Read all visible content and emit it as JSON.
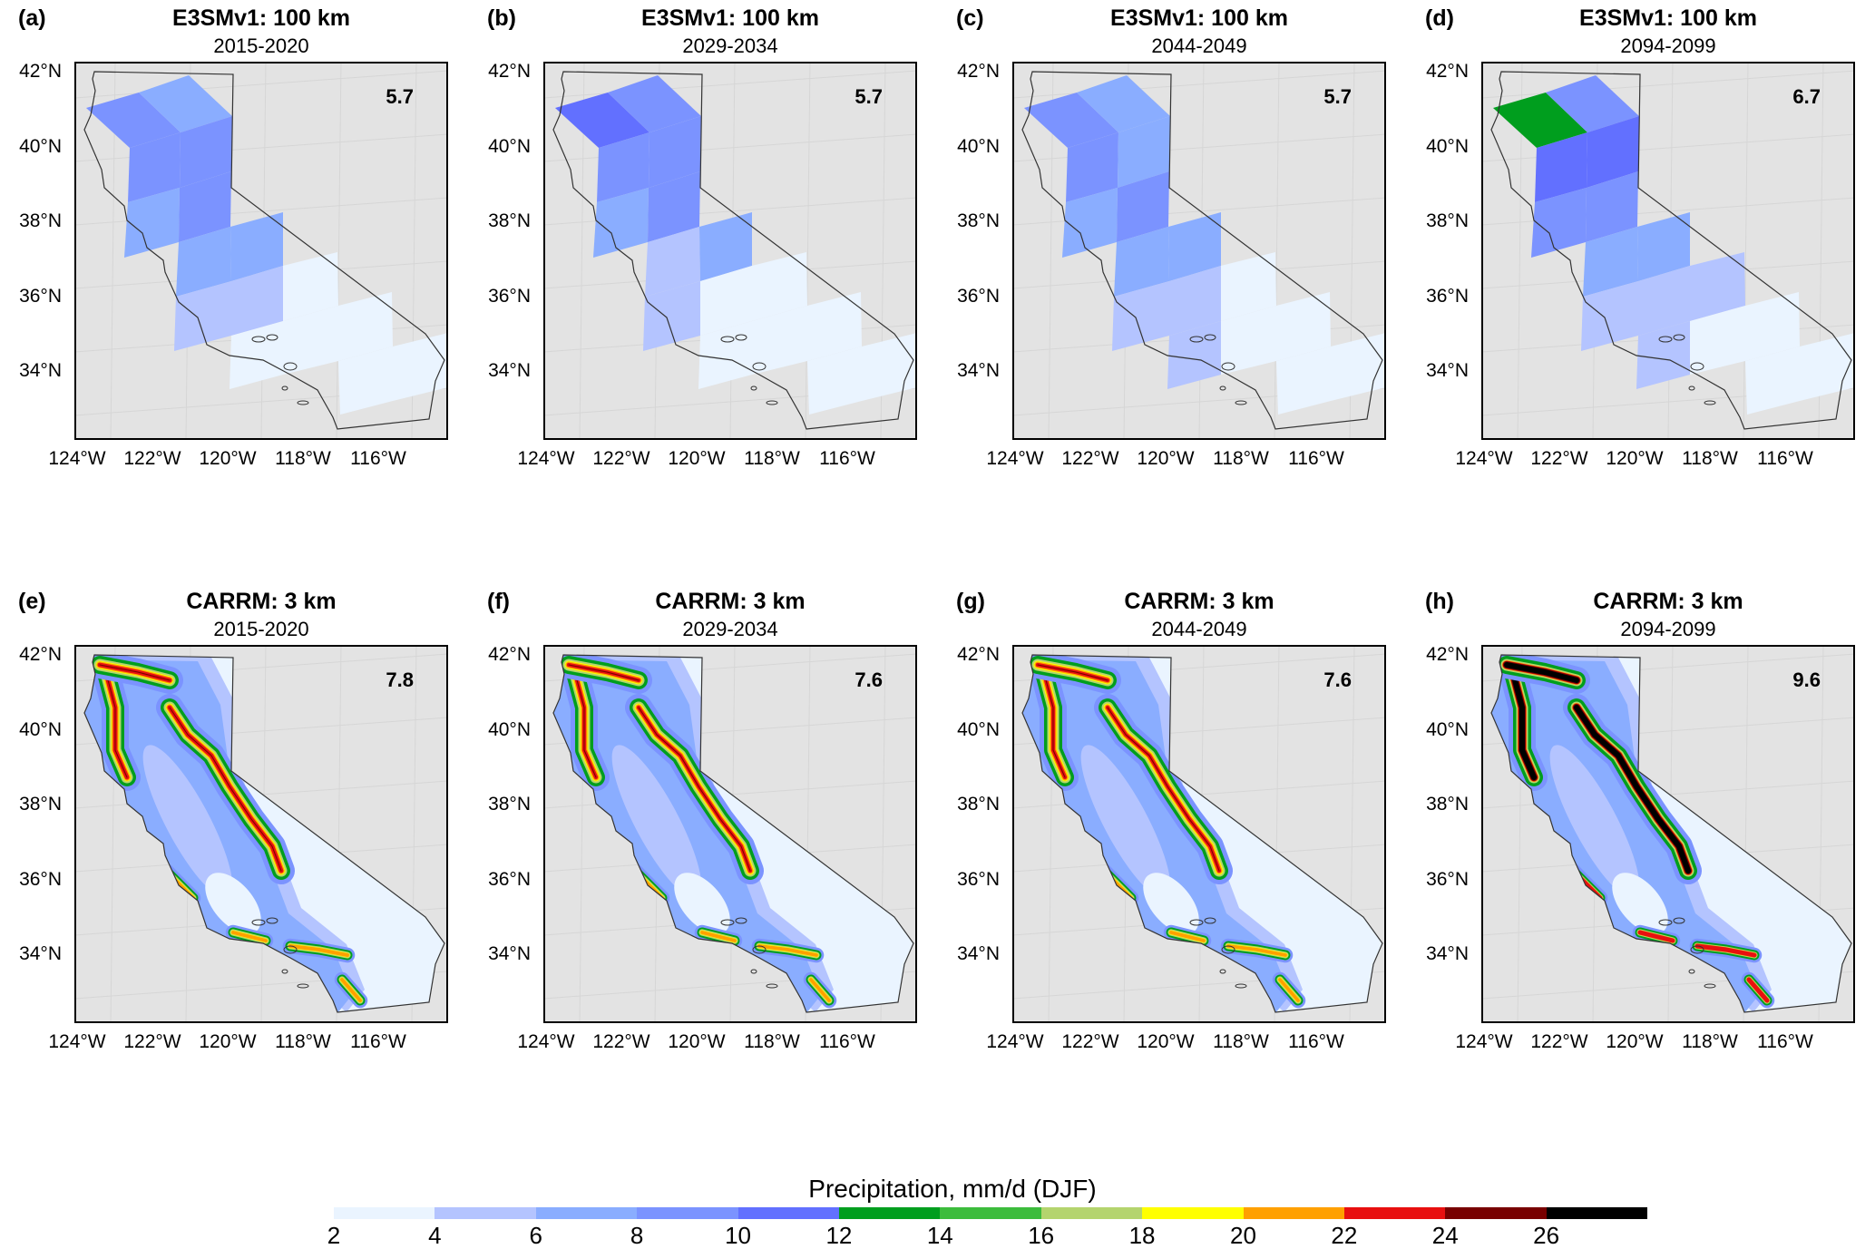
{
  "lat_ticks": [
    "42°N",
    "40°N",
    "38°N",
    "36°N",
    "34°N"
  ],
  "lon_ticks": [
    "124°W",
    "122°W",
    "120°W",
    "118°W",
    "116°W"
  ],
  "colorbar": {
    "title": "Precipitation, mm/d (DJF)",
    "ticks": [
      "2",
      "4",
      "6",
      "8",
      "10",
      "12",
      "14",
      "16",
      "18",
      "20",
      "22",
      "24",
      "26"
    ],
    "colors": [
      "#eaf4ff",
      "#b4c4ff",
      "#8aadff",
      "#7b93ff",
      "#6270ff",
      "#009e1e",
      "#3cbc3c",
      "#b4d46e",
      "#ffff00",
      "#ffa000",
      "#e81010",
      "#780000",
      "#000000"
    ],
    "bounds": [
      2,
      4,
      6,
      8,
      10,
      12,
      14,
      16,
      18,
      20,
      22,
      24,
      26,
      28
    ]
  },
  "chart_data": [
    {
      "type": "heatmap",
      "label": "(a)",
      "title": "E3SMv1: 100 km",
      "subtitle": "2015-2020",
      "mean": "5.7",
      "model": "E3SM",
      "cell_values": [
        9,
        7,
        9,
        9,
        7,
        9,
        7,
        7,
        5,
        5,
        3,
        3,
        3,
        3,
        3,
        3
      ]
    },
    {
      "type": "heatmap",
      "label": "(b)",
      "title": "E3SMv1: 100 km",
      "subtitle": "2029-2034",
      "mean": "5.7",
      "model": "E3SM",
      "cell_values": [
        11,
        9,
        9,
        9,
        7,
        9,
        5,
        7,
        5,
        3,
        3,
        3,
        3,
        3,
        3,
        3
      ]
    },
    {
      "type": "heatmap",
      "label": "(c)",
      "title": "E3SMv1: 100 km",
      "subtitle": "2044-2049",
      "mean": "5.7",
      "model": "E3SM",
      "cell_values": [
        9,
        7,
        9,
        7,
        7,
        9,
        7,
        7,
        5,
        5,
        5,
        3,
        3,
        3,
        3,
        3
      ]
    },
    {
      "type": "heatmap",
      "label": "(d)",
      "title": "E3SMv1: 100 km",
      "subtitle": "2094-2099",
      "mean": "6.7",
      "model": "E3SM",
      "cell_values": [
        13,
        9,
        11,
        11,
        9,
        9,
        7,
        7,
        5,
        5,
        5,
        5,
        3,
        3,
        3,
        3
      ]
    },
    {
      "type": "heatmap",
      "label": "(e)",
      "title": "CARRM: 3 km",
      "subtitle": "2015-2020",
      "mean": "7.8",
      "model": "CARRM"
    },
    {
      "type": "heatmap",
      "label": "(f)",
      "title": "CARRM: 3 km",
      "subtitle": "2029-2034",
      "mean": "7.6",
      "model": "CARRM"
    },
    {
      "type": "heatmap",
      "label": "(g)",
      "title": "CARRM: 3 km",
      "subtitle": "2044-2049",
      "mean": "7.6",
      "model": "CARRM"
    },
    {
      "type": "heatmap",
      "label": "(h)",
      "title": "CARRM: 3 km",
      "subtitle": "2094-2099",
      "mean": "9.6",
      "model": "CARRM"
    }
  ]
}
